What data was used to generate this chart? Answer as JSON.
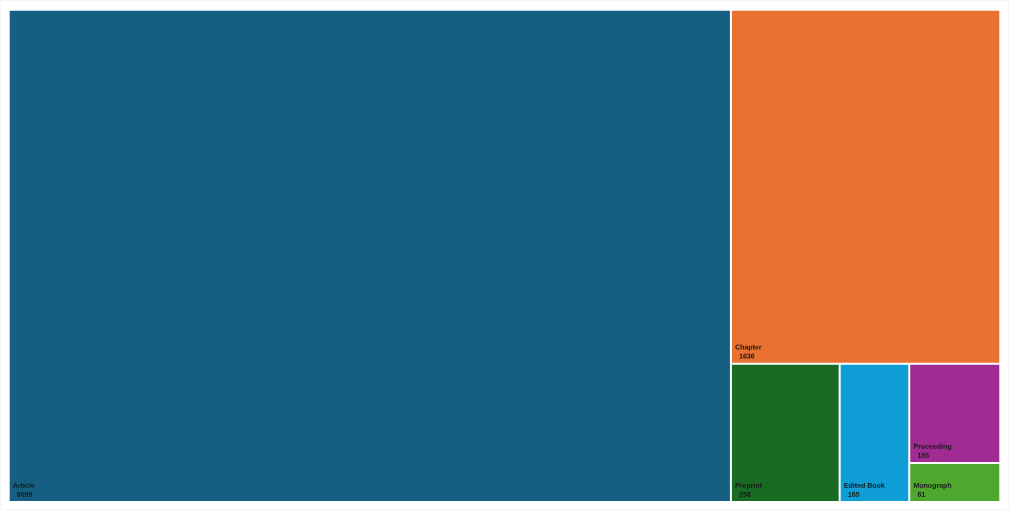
{
  "chart_data": {
    "type": "other",
    "categories": [
      "Article",
      "Chapter",
      "Preprint",
      "Edited Book",
      "Proceeding",
      "Monograph"
    ],
    "values": [
      6099,
      1636,
      258,
      165,
      155,
      61
    ],
    "colors": [
      "#156082",
      "#e97132",
      "#196b24",
      "#0f9ed5",
      "#a02b93",
      "#4ea72e"
    ],
    "data_labels": true
  }
}
